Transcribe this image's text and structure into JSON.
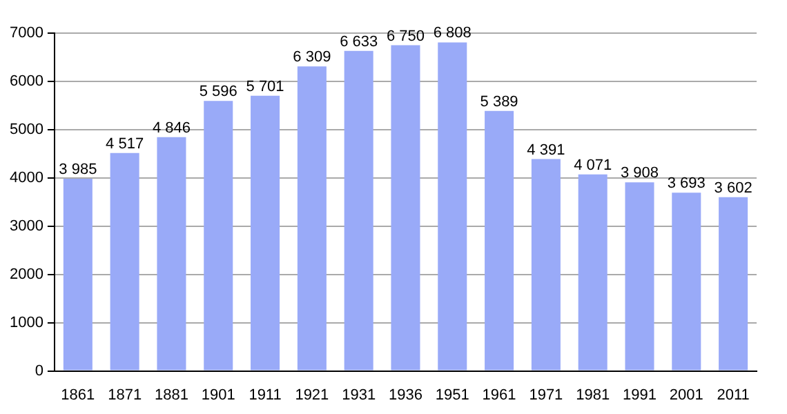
{
  "chart_data": {
    "type": "bar",
    "categories": [
      "1861",
      "1871",
      "1881",
      "1901",
      "1911",
      "1921",
      "1931",
      "1936",
      "1951",
      "1961",
      "1971",
      "1981",
      "1991",
      "2001",
      "2011"
    ],
    "values": [
      3985,
      4517,
      4846,
      5596,
      5701,
      6309,
      6633,
      6750,
      6808,
      5389,
      4391,
      4071,
      3908,
      3693,
      3602
    ],
    "value_labels": [
      "3 985",
      "4 517",
      "4 846",
      "5 596",
      "5 701",
      "6 309",
      "6 633",
      "6 750",
      "6 808",
      "5 389",
      "4 391",
      "4 071",
      "3 908",
      "3 693",
      "3 602"
    ],
    "color": "#99aaf8",
    "ylim": [
      0,
      7000
    ],
    "yticks": [
      0,
      1000,
      2000,
      3000,
      4000,
      5000,
      6000,
      7000
    ],
    "grid": "y",
    "legend": false
  }
}
